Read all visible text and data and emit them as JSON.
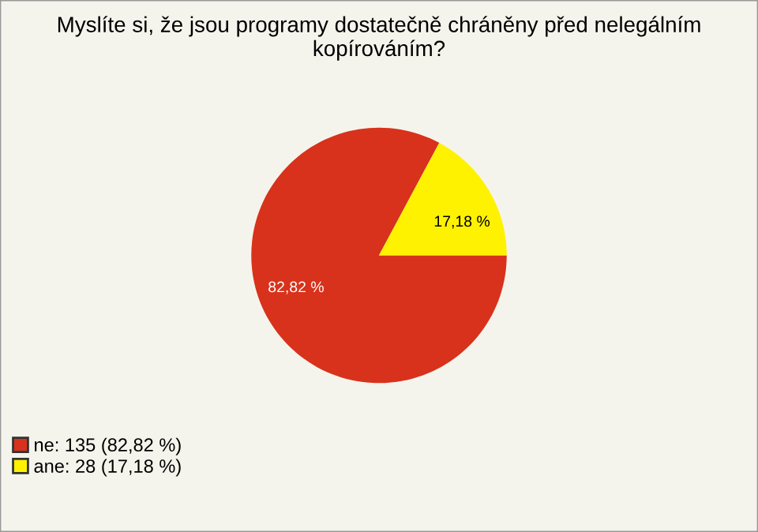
{
  "chart_data": {
    "type": "pie",
    "title": "Myslíte si, že jsou programy dostatečně chráněny před nelegálním kopírováním?",
    "categories": [
      "ne: 135 (82,82 %)",
      "ane: 28 (17,18 %)"
    ],
    "values": [
      82.82,
      17.18
    ],
    "value_labels": [
      "82,82 %",
      "17,18 %"
    ],
    "colors": [
      "#d8321c",
      "#fff200"
    ],
    "legend": "bottom left"
  }
}
